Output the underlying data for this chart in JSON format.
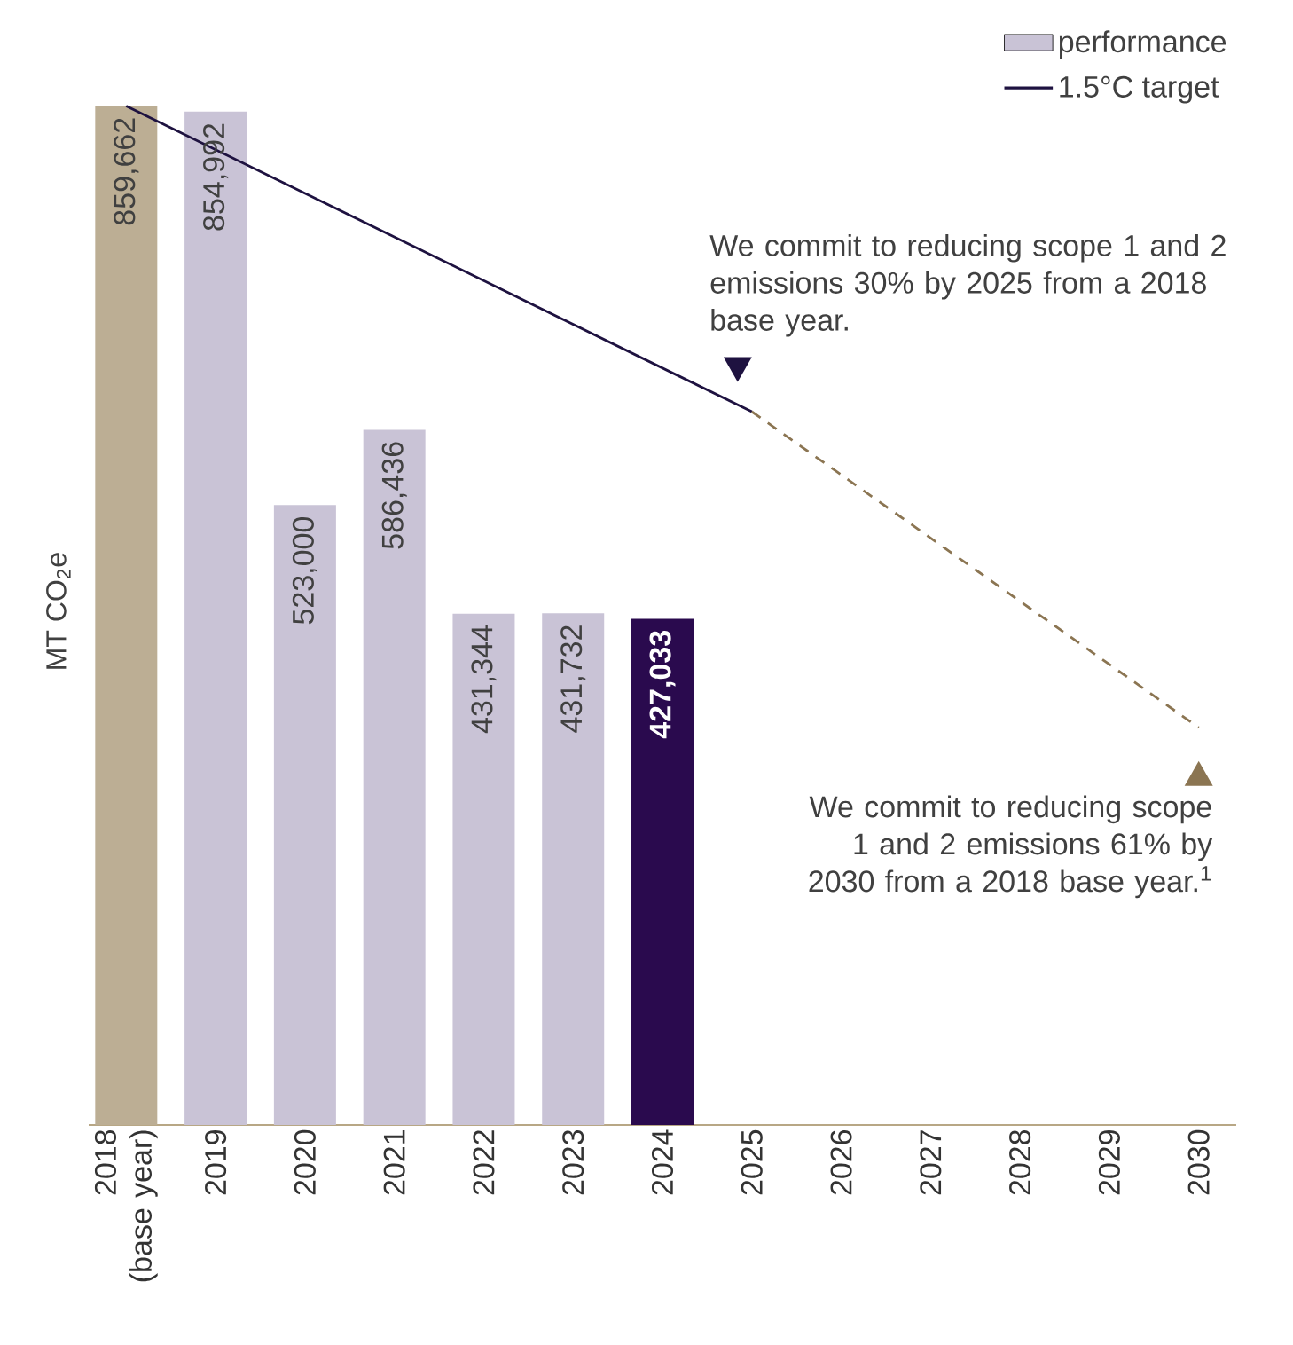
{
  "chart_data": {
    "type": "bar",
    "ylabel": "MT CO$_{2}$e",
    "categories": [
      "2018 (base year)",
      "2019",
      "2020",
      "2021",
      "2022",
      "2023",
      "2024",
      "2025",
      "2026",
      "2027",
      "2028",
      "2029",
      "2030"
    ],
    "series": [
      {
        "name": "performance",
        "type": "bar",
        "colors": [
          "#bcae94",
          "#c9c3d6",
          "#c9c3d6",
          "#c9c3d6",
          "#c9c3d6",
          "#c9c3d6",
          "#2a0a4e",
          null,
          null,
          null,
          null,
          null,
          null
        ],
        "values": [
          859662,
          854992,
          523000,
          586436,
          431344,
          431732,
          427033,
          null,
          null,
          null,
          null,
          null,
          null
        ],
        "value_labels": [
          "859,662",
          "854,992",
          "523,000",
          "586,436",
          "431,344",
          "431,732",
          "427,033",
          null,
          null,
          null,
          null,
          null,
          null
        ]
      },
      {
        "name": "1.5°C target",
        "type": "line",
        "color": "#1e1240",
        "line_style": "solid",
        "values": [
          859662,
          null,
          null,
          null,
          null,
          null,
          null,
          601763,
          null,
          null,
          null,
          null,
          null
        ]
      },
      {
        "type": "line",
        "color": "#8b7552",
        "line_style": "dashed",
        "values": [
          null,
          null,
          null,
          null,
          null,
          null,
          null,
          601763,
          null,
          null,
          null,
          null,
          335268
        ]
      }
    ],
    "annotations": [
      {
        "text": "We commit to reducing scope 1 and 2 emissions 30% by 2025 from a 2018 base year.",
        "x": "2025",
        "y": 601763
      },
      {
        "text": "We commit to reducing scope 1 and 2 emissions 61% by 2030 from a 2018 base year.$^{1}$",
        "x": "2030",
        "y": 335268
      }
    ],
    "legend": "top right",
    "grid": false
  }
}
